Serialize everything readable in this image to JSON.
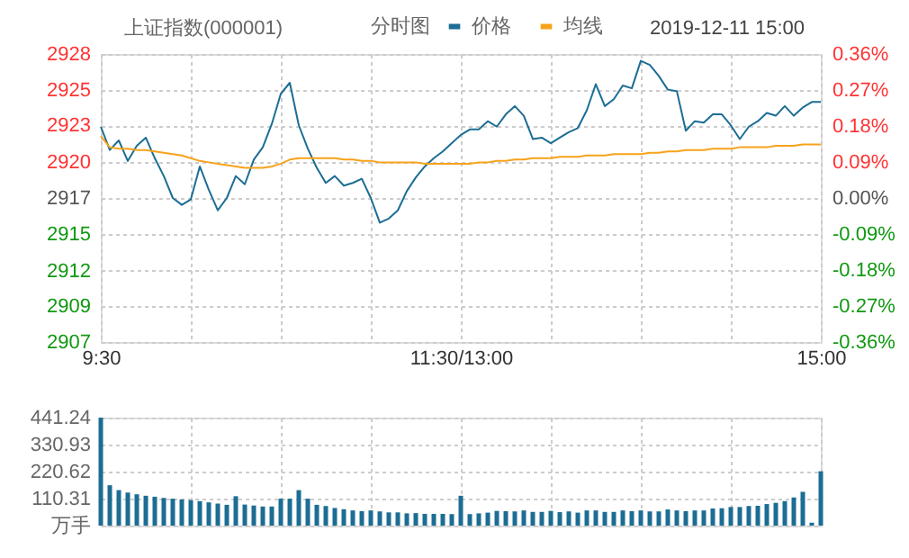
{
  "chart_data": [
    {
      "type": "line",
      "title": "上证指数(000001)",
      "legend_title": "分时图",
      "annotations": [
        "2019-12-11 15:00"
      ],
      "legend": "top",
      "grid": true,
      "categories": [
        "9:30",
        null,
        null,
        null,
        null,
        null,
        null,
        null,
        null,
        null,
        null,
        null,
        null,
        null,
        null,
        null,
        null,
        null,
        null,
        null,
        null,
        null,
        null,
        null,
        null,
        null,
        null,
        null,
        null,
        null,
        null,
        null,
        null,
        null,
        null,
        null,
        null,
        null,
        null,
        null,
        "11:30/13:00",
        null,
        null,
        null,
        null,
        null,
        null,
        null,
        null,
        null,
        null,
        null,
        null,
        null,
        null,
        null,
        null,
        null,
        null,
        null,
        null,
        null,
        null,
        null,
        null,
        null,
        null,
        null,
        null,
        null,
        null,
        null,
        null,
        null,
        null,
        null,
        null,
        null,
        null,
        null,
        "15:00"
      ],
      "ylim": [
        2906.8,
        2927.8
      ],
      "yticks": [
        {
          "value": 2927.8,
          "label": "2928"
        },
        {
          "value": 2925.2,
          "label": "2925"
        },
        {
          "value": 2922.6,
          "label": "2923"
        },
        {
          "value": 2919.9,
          "label": "2920"
        },
        {
          "value": 2917.3,
          "label": "2917"
        },
        {
          "value": 2914.7,
          "label": "2915"
        },
        {
          "value": 2912.0,
          "label": "2912"
        },
        {
          "value": 2909.4,
          "label": "2909"
        },
        {
          "value": 2906.8,
          "label": "2907"
        }
      ],
      "y2lim": [
        -0.36,
        0.36
      ],
      "y2ticks": [
        {
          "value": 0.36,
          "label": "0.36%"
        },
        {
          "value": 0.27,
          "label": "0.27%"
        },
        {
          "value": 0.18,
          "label": "0.18%"
        },
        {
          "value": 0.09,
          "label": "0.09%"
        },
        {
          "value": 0,
          "label": "0.00%"
        },
        {
          "value": -0.09,
          "label": "-0.09%"
        },
        {
          "value": -0.18,
          "label": "-0.18%"
        },
        {
          "value": -0.27,
          "label": "-0.27%"
        },
        {
          "value": -0.36,
          "label": "-0.36%"
        }
      ],
      "series": [
        {
          "name": "价格",
          "color": "#1c6d94",
          "values": [
            2922.5,
            2920.8,
            2921.5,
            2920.0,
            2921.1,
            2921.7,
            2920.2,
            2918.9,
            2917.3,
            2916.8,
            2917.2,
            2919.6,
            2917.9,
            2916.4,
            2917.3,
            2918.9,
            2918.3,
            2920.1,
            2921.0,
            2922.7,
            2924.9,
            2925.7,
            2922.6,
            2920.9,
            2919.5,
            2918.4,
            2918.9,
            2918.2,
            2918.4,
            2918.7,
            2917.3,
            2915.5,
            2915.8,
            2916.4,
            2917.8,
            2918.8,
            2919.6,
            2920.2,
            2920.7,
            2921.3,
            2921.9,
            2922.3,
            2922.3,
            2922.9,
            2922.5,
            2923.4,
            2924.0,
            2923.3,
            2921.6,
            2921.7,
            2921.3,
            2921.7,
            2922.1,
            2922.4,
            2923.7,
            2925.6,
            2924.0,
            2924.5,
            2925.5,
            2925.3,
            2927.3,
            2927.0,
            2926.2,
            2925.2,
            2925.1,
            2922.2,
            2922.9,
            2922.8,
            2923.4,
            2923.4,
            2922.6,
            2921.6,
            2922.5,
            2922.9,
            2923.5,
            2923.3,
            2924.0,
            2923.3,
            2923.9,
            2924.3,
            2924.3
          ]
        },
        {
          "name": "均线",
          "color": "#f7a21b",
          "values": [
            2921.8,
            2921.0,
            2920.9,
            2920.9,
            2920.8,
            2920.8,
            2920.7,
            2920.6,
            2920.5,
            2920.4,
            2920.2,
            2920.0,
            2919.9,
            2919.8,
            2919.7,
            2919.6,
            2919.5,
            2919.5,
            2919.5,
            2919.6,
            2919.8,
            2920.1,
            2920.2,
            2920.2,
            2920.2,
            2920.2,
            2920.2,
            2920.1,
            2920.1,
            2920.0,
            2920.0,
            2919.9,
            2919.9,
            2919.9,
            2919.9,
            2919.9,
            2919.8,
            2919.8,
            2919.8,
            2919.8,
            2919.8,
            2919.8,
            2919.9,
            2919.9,
            2920.0,
            2920.0,
            2920.1,
            2920.1,
            2920.2,
            2920.2,
            2920.2,
            2920.3,
            2920.3,
            2920.3,
            2920.4,
            2920.4,
            2920.4,
            2920.5,
            2920.5,
            2920.5,
            2920.5,
            2920.6,
            2920.6,
            2920.7,
            2920.7,
            2920.8,
            2920.8,
            2920.8,
            2920.9,
            2920.9,
            2920.9,
            2921.0,
            2921.0,
            2921.0,
            2921.0,
            2921.1,
            2921.1,
            2921.1,
            2921.2,
            2921.2,
            2921.2
          ]
        }
      ]
    },
    {
      "type": "bar",
      "color": "#1c6d94",
      "grid": true,
      "categories": [
        null,
        null,
        null,
        null,
        null,
        null,
        null,
        null,
        null,
        null,
        null,
        null,
        null,
        null,
        null,
        null,
        null,
        null,
        null,
        null,
        null,
        null,
        null,
        null,
        null,
        null,
        null,
        null,
        null,
        null,
        null,
        null,
        null,
        null,
        null,
        null,
        null,
        null,
        null,
        null,
        null,
        null,
        null,
        null,
        null,
        null,
        null,
        null,
        null,
        null,
        null,
        null,
        null,
        null,
        null,
        null,
        null,
        null,
        null,
        null,
        null,
        null,
        null,
        null,
        null,
        null,
        null,
        null,
        null,
        null,
        null,
        null,
        null,
        null,
        null,
        null,
        null,
        null,
        null,
        null,
        null
      ],
      "ylim": [
        0,
        441.24
      ],
      "yticks": [
        {
          "value": 0,
          "label": "万手"
        },
        110.31,
        220.62,
        330.93,
        441.24
      ],
      "values": [
        441,
        165,
        145,
        135,
        128,
        122,
        118,
        113,
        110,
        107,
        104,
        100,
        95,
        90,
        85,
        120,
        86,
        82,
        78,
        78,
        110,
        110,
        145,
        110,
        85,
        80,
        72,
        67,
        62,
        59,
        62,
        58,
        54,
        54,
        50,
        51,
        48,
        48,
        48,
        47,
        122,
        47,
        50,
        53,
        60,
        59,
        58,
        62,
        56,
        56,
        60,
        55,
        58,
        53,
        62,
        62,
        56,
        56,
        62,
        59,
        62,
        58,
        58,
        66,
        62,
        59,
        62,
        62,
        70,
        71,
        76,
        76,
        80,
        81,
        88,
        93,
        100,
        115,
        138,
        12,
        222
      ]
    }
  ]
}
